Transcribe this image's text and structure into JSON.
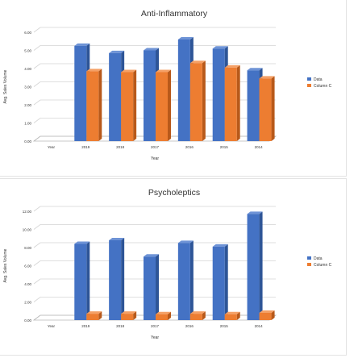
{
  "colors": {
    "data_front": "#4472c4",
    "data_side": "#2e5597",
    "data_top": "#6e93d6",
    "colc_front": "#ed7d31",
    "colc_side": "#b8591a",
    "colc_top": "#f4a066",
    "grid": "#d5d5d5",
    "floor": "#b8b8b8",
    "text": "#333333"
  },
  "chart_data": [
    {
      "type": "bar",
      "title": "Anti-Inflammatory",
      "xlabel": "Year",
      "ylabel": "Avg. Sales Volume",
      "categories": [
        "Year",
        "2019",
        "2018",
        "2017",
        "2016",
        "2015",
        "2014"
      ],
      "series": [
        {
          "name": "Data",
          "values": [
            0,
            5.25,
            4.85,
            5.0,
            5.6,
            5.1,
            3.9
          ]
        },
        {
          "name": "Column C",
          "values": [
            0,
            3.85,
            3.8,
            3.8,
            4.3,
            4.05,
            3.45
          ]
        }
      ],
      "ylim": [
        0,
        6
      ],
      "yticks": [
        "0.00",
        "1.00",
        "2.00",
        "3.00",
        "4.00",
        "5.00",
        "6.00"
      ],
      "legend": "right",
      "grid": true
    },
    {
      "type": "bar",
      "title": "Psycholeptics",
      "xlabel": "Year",
      "ylabel": "Avg. Sales Volume",
      "categories": [
        "Year",
        "2019",
        "2018",
        "2017",
        "2016",
        "2015",
        "2014"
      ],
      "series": [
        {
          "name": "Data",
          "values": [
            0,
            8.4,
            8.8,
            7.0,
            8.5,
            8.1,
            11.7
          ]
        },
        {
          "name": "Column C",
          "values": [
            0,
            0.7,
            0.7,
            0.65,
            0.7,
            0.65,
            0.8
          ]
        }
      ],
      "ylim": [
        0,
        12
      ],
      "yticks": [
        "0.00",
        "2.00",
        "4.00",
        "6.00",
        "8.00",
        "10.00",
        "12.00"
      ],
      "legend": "right",
      "grid": true
    }
  ]
}
